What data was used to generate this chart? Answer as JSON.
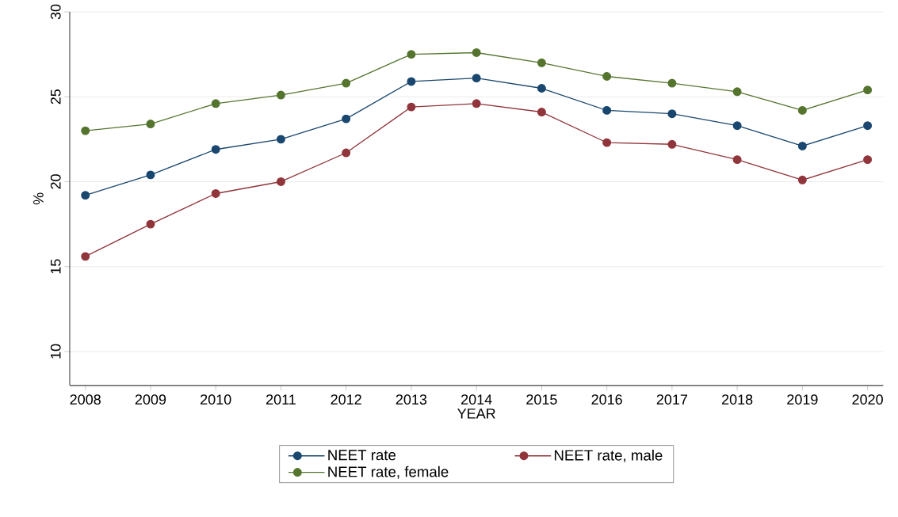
{
  "chart_data": {
    "type": "line",
    "xlabel": "YEAR",
    "ylabel": "%",
    "categories": [
      "2008",
      "2009",
      "2010",
      "2011",
      "2012",
      "2013",
      "2014",
      "2015",
      "2016",
      "2017",
      "2018",
      "2019",
      "2020"
    ],
    "series": [
      {
        "name": "NEET rate",
        "color": "#1a476f",
        "values": [
          19.2,
          20.4,
          21.9,
          22.5,
          23.7,
          25.9,
          26.1,
          25.5,
          24.2,
          24.0,
          23.3,
          22.1,
          23.3
        ]
      },
      {
        "name": "NEET rate, male",
        "color": "#90353b",
        "values": [
          15.6,
          17.5,
          19.3,
          20.0,
          21.7,
          24.4,
          24.6,
          24.1,
          22.3,
          22.2,
          21.3,
          20.1,
          21.3
        ]
      },
      {
        "name": "NEET rate, female",
        "color": "#55752f",
        "values": [
          23.0,
          23.4,
          24.6,
          25.1,
          25.8,
          27.5,
          27.6,
          27.0,
          26.2,
          25.8,
          25.3,
          24.2,
          25.4
        ]
      }
    ],
    "ylim": [
      10,
      30
    ],
    "yticks": [
      10,
      15,
      20,
      25,
      30
    ],
    "grid": "y",
    "legend": "bottom",
    "marker": "circle",
    "line_style": "solid"
  }
}
